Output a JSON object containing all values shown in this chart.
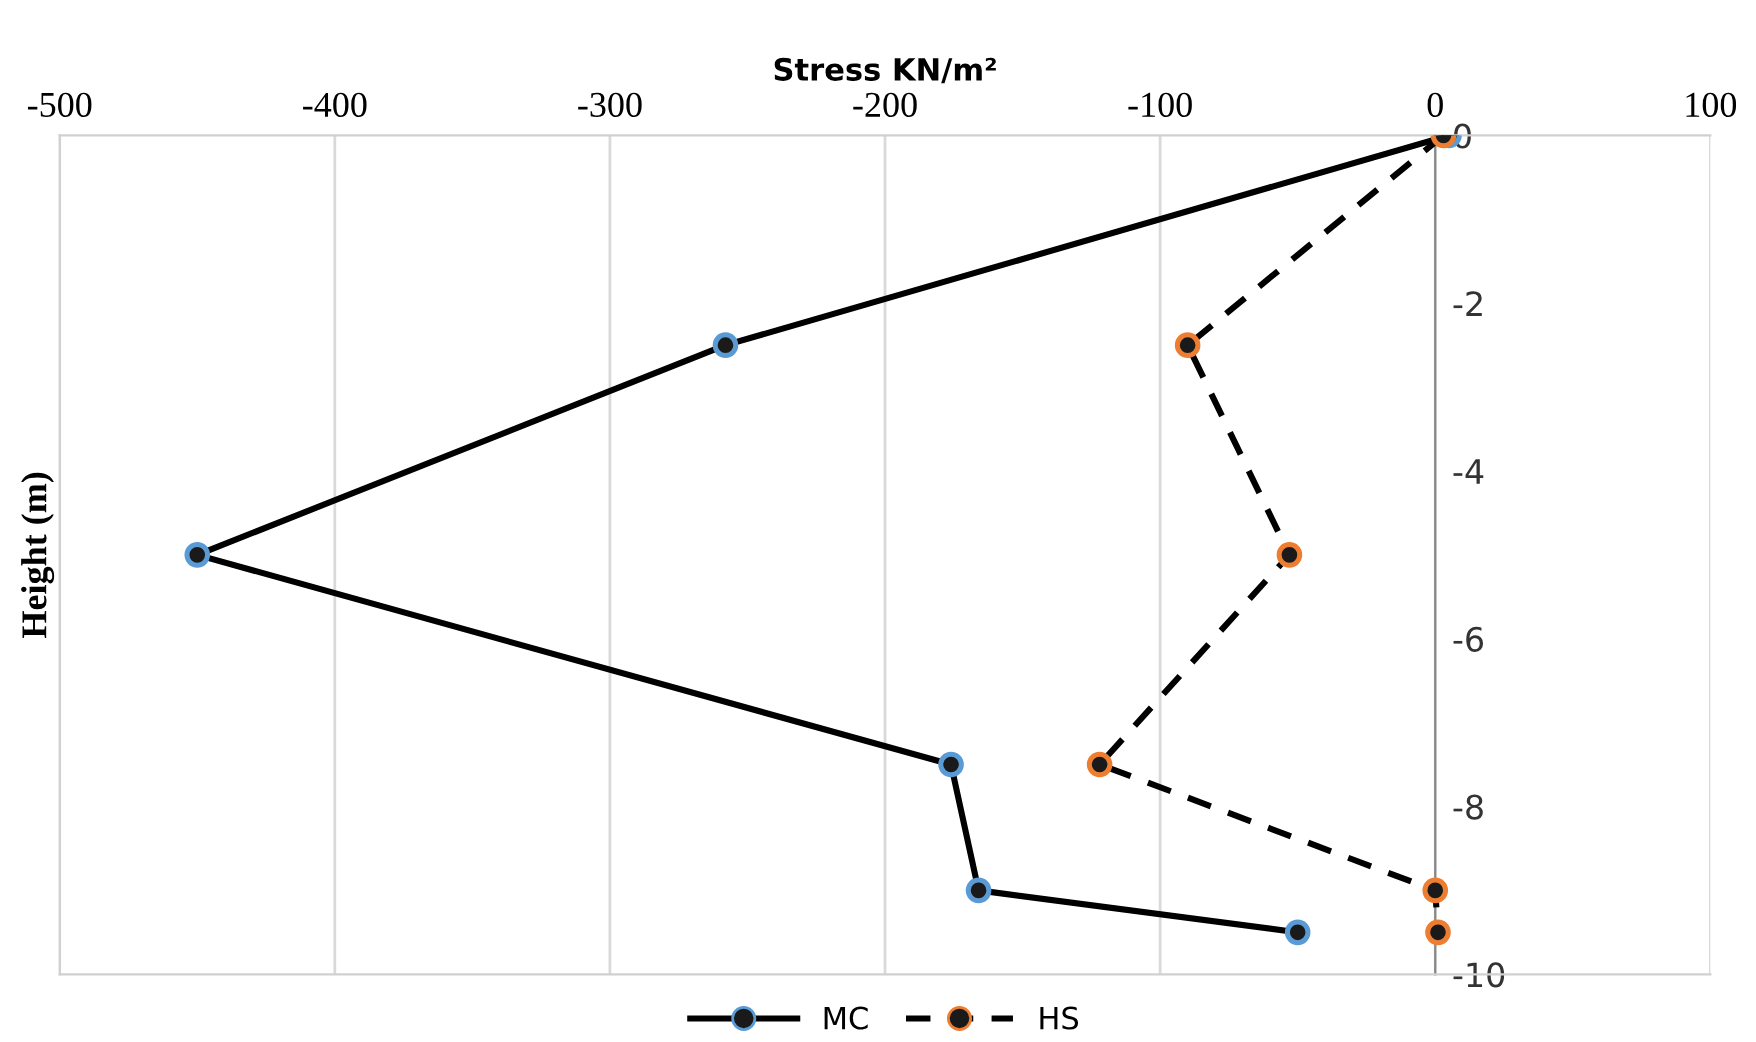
{
  "chart_data": {
    "type": "line",
    "xlabel": "Stress KN/m²",
    "ylabel": "Height (m)",
    "xlim": [
      -500,
      100
    ],
    "xticks": [
      -500,
      -400,
      -300,
      -200,
      -100,
      0,
      100
    ],
    "ylim": [
      -10,
      0
    ],
    "yticks": [
      -10,
      -8,
      -6,
      -4,
      -2,
      0
    ],
    "grid": "x",
    "legend": "bottom",
    "marker": "circle",
    "series": [
      {
        "name": "MC",
        "color": "#000000",
        "colors": [
          "#5b9bd5",
          "#5b9bd5",
          "#5b9bd5",
          "#5b9bd5",
          "#5b9bd5",
          "#5b9bd5"
        ],
        "line_style": "solid",
        "x": [
          5,
          -258,
          -450,
          -176,
          -166,
          -50
        ],
        "values": [
          0,
          -2.5,
          -5,
          -7.5,
          -9,
          -9.5
        ]
      },
      {
        "name": "HS",
        "color": "#000000",
        "colors": [
          "#ed7d31",
          "#ed7d31",
          "#ed7d31",
          "#ed7d31",
          "#ed7d31",
          "#ed7d31"
        ],
        "line_style": "dashed",
        "x": [
          3,
          -90,
          -53,
          -122,
          0,
          1
        ],
        "values": [
          0,
          -2.5,
          -5,
          -7.5,
          -9,
          -9.5
        ]
      }
    ]
  }
}
